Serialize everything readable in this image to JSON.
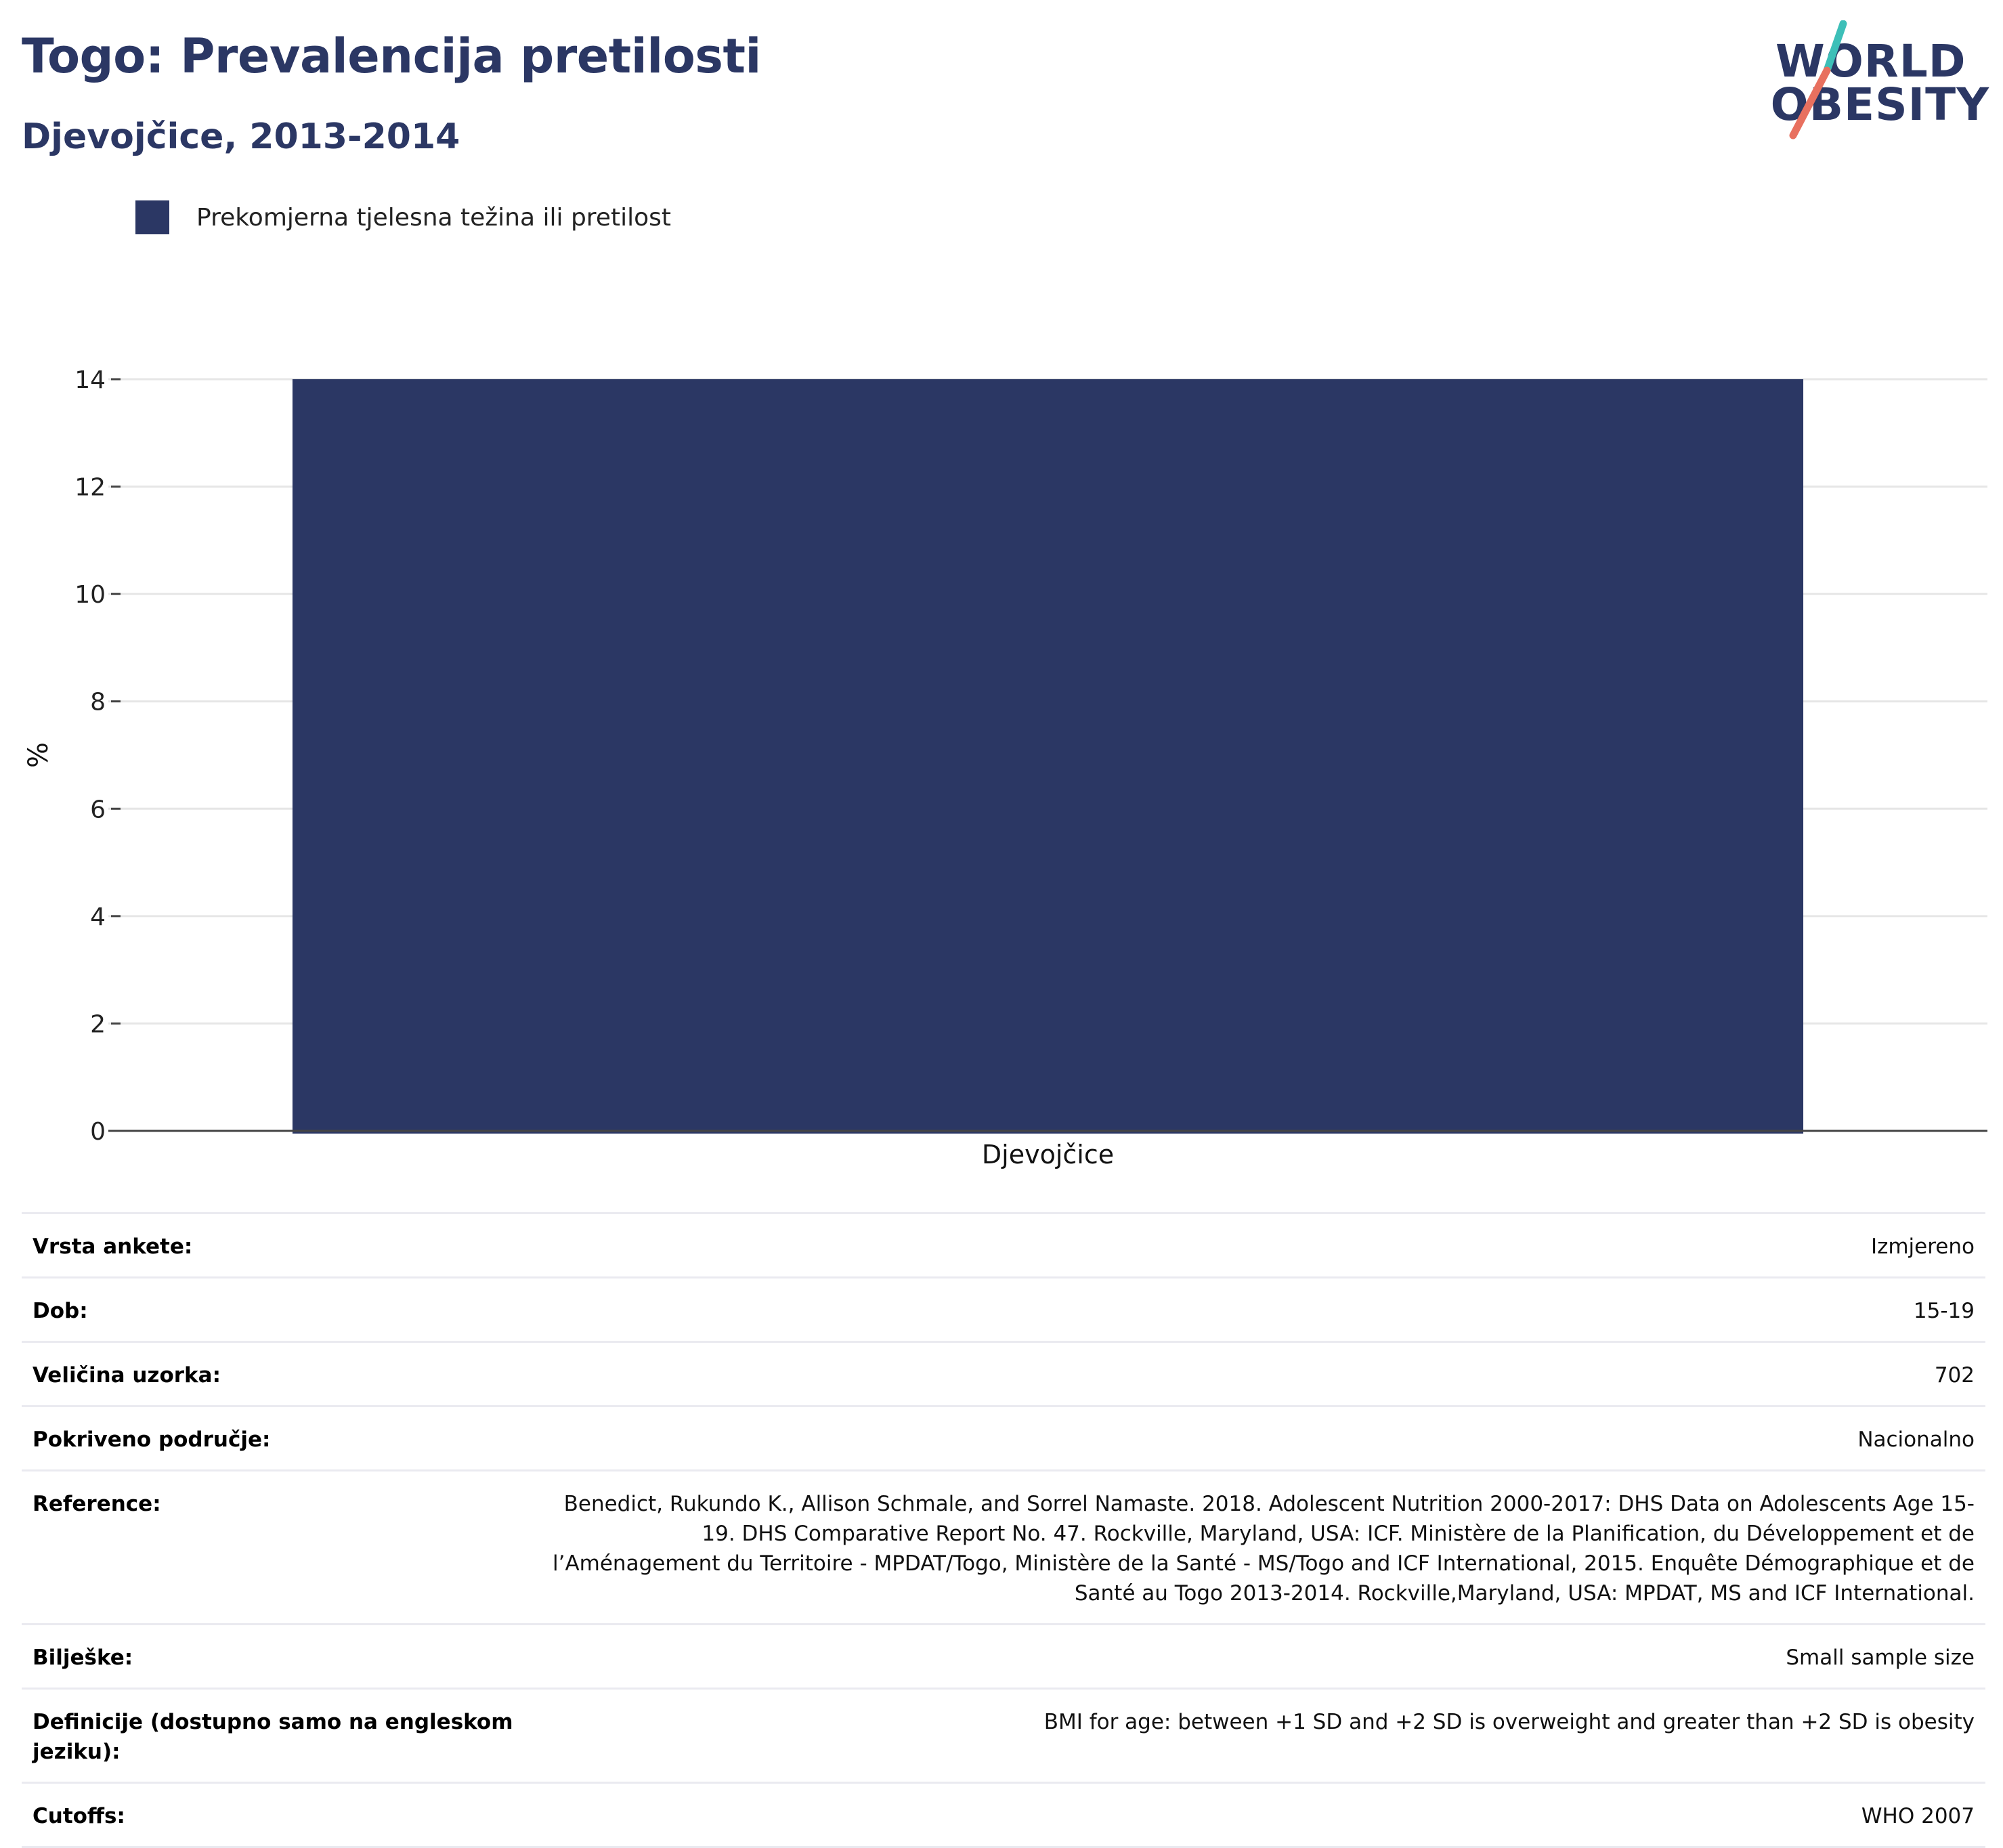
{
  "header": {
    "title": "Togo: Prevalencija pretilosti",
    "subtitle": "Djevojčice, 2013-2014"
  },
  "logo": {
    "line1": "WORLD",
    "line2": "OBESITY"
  },
  "colors": {
    "series": "#2b3764",
    "title": "#2b3764",
    "logo_teal": "#3dbfb8",
    "logo_coral": "#e8705f"
  },
  "chart_data": {
    "type": "bar",
    "categories": [
      "Djevojčice"
    ],
    "series": [
      {
        "name": "Prekomjerna tjelesna težina ili pretilost",
        "values": [
          14
        ]
      }
    ],
    "ylabel": "%",
    "xlabel": "",
    "ylim": [
      0,
      14
    ],
    "yticks": [
      0,
      2,
      4,
      6,
      8,
      10,
      12,
      14
    ],
    "grid": true,
    "legend": "top-left"
  },
  "info": [
    {
      "label": "Vrsta ankete:",
      "value": "Izmjereno"
    },
    {
      "label": "Dob:",
      "value": "15-19"
    },
    {
      "label": "Veličina uzorka:",
      "value": "702"
    },
    {
      "label": "Pokriveno područje:",
      "value": "Nacionalno"
    },
    {
      "label": "Reference:",
      "value": "Benedict, Rukundo K., Allison Schmale, and Sorrel Namaste. 2018. Adolescent Nutrition 2000-2017: DHS Data on Adolescents Age 15-19. DHS Comparative Report No. 47. Rockville, Maryland, USA: ICF. Ministère de la Planification, du Développement et de l’Aménagement du Territoire - MPDAT/Togo, Ministère de la Santé - MS/Togo and ICF International, 2015. Enquête Démographique et de Santé au Togo 2013-2014. Rockville,Maryland, USA: MPDAT, MS and ICF International."
    },
    {
      "label": "Bilješke:",
      "value": "Small sample size"
    },
    {
      "label": "Definicije (dostupno samo na engleskom jeziku):",
      "value": "BMI for age: between +1 SD and +2 SD is overweight and greater than +2 SD is obesity"
    },
    {
      "label": "Cutoffs:",
      "value": "WHO 2007"
    }
  ]
}
